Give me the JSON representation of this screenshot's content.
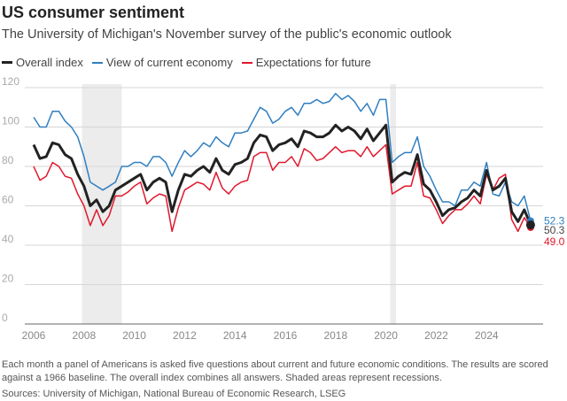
{
  "chart_data": {
    "type": "line",
    "title": "US consumer sentiment",
    "subtitle": "The University of Michigan's November survey of the public's economic outlook",
    "xlim": [
      2006,
      2026
    ],
    "ylim": [
      0,
      120
    ],
    "x_ticks": [
      "2006",
      "2008",
      "2010",
      "2012",
      "2014",
      "2016",
      "2018",
      "2020",
      "2022",
      "2024"
    ],
    "y_ticks": [
      "0",
      "20",
      "40",
      "60",
      "80",
      "100",
      "120"
    ],
    "grid": true,
    "legend_placement": "top-left",
    "recessions": [
      [
        2007.92,
        2009.5
      ],
      [
        2020.17,
        2020.4
      ]
    ],
    "x_start": 2006,
    "x_step_years": 0.25,
    "series": [
      {
        "name": "Overall index",
        "color": "#222222",
        "end_label": "50.3",
        "values": [
          91,
          84,
          85,
          92,
          91,
          86,
          84,
          76,
          70,
          60,
          63,
          57,
          60,
          68,
          70,
          72,
          74,
          76,
          68,
          72,
          74,
          72,
          57,
          68,
          76,
          75,
          78,
          80,
          77,
          84,
          78,
          76,
          81,
          82,
          84,
          92,
          96,
          95,
          88,
          91,
          92,
          94,
          90,
          98,
          97,
          95,
          95,
          97,
          101,
          98,
          100,
          98,
          94,
          99,
          93,
          97,
          101,
          72,
          75,
          77,
          76,
          86,
          71,
          68,
          62,
          55,
          58,
          59,
          62,
          64,
          68,
          65,
          78,
          68,
          70,
          74,
          57,
          52,
          58,
          50.3
        ]
      },
      {
        "name": "View of current economy",
        "color": "#2f7fc1",
        "end_label": "52.3",
        "values": [
          105,
          100,
          100,
          108,
          108,
          103,
          100,
          95,
          85,
          72,
          70,
          68,
          70,
          72,
          80,
          80,
          82,
          82,
          80,
          85,
          85,
          82,
          75,
          82,
          88,
          85,
          88,
          92,
          90,
          95,
          92,
          90,
          97,
          97,
          98,
          104,
          110,
          108,
          102,
          104,
          108,
          110,
          106,
          112,
          112,
          114,
          112,
          113,
          117,
          114,
          116,
          113,
          108,
          112,
          106,
          114,
          114,
          82,
          85,
          87,
          87,
          95,
          80,
          75,
          68,
          62,
          62,
          60,
          68,
          68,
          72,
          70,
          82,
          66,
          65,
          72,
          62,
          60,
          65,
          52.3
        ]
      },
      {
        "name": "Expectations for future",
        "color": "#e0182d",
        "end_label": "49.0",
        "values": [
          80,
          73,
          75,
          82,
          80,
          75,
          74,
          66,
          60,
          50,
          58,
          50,
          55,
          65,
          65,
          67,
          70,
          72,
          61,
          64,
          66,
          65,
          47,
          59,
          68,
          70,
          72,
          71,
          68,
          77,
          69,
          66,
          70,
          72,
          73,
          85,
          87,
          87,
          78,
          82,
          82,
          85,
          80,
          89,
          87,
          83,
          84,
          87,
          90,
          87,
          88,
          88,
          85,
          90,
          85,
          88,
          91,
          66,
          68,
          70,
          70,
          82,
          65,
          64,
          58,
          51,
          55,
          58,
          58,
          61,
          65,
          61,
          76,
          68,
          74,
          76,
          53,
          47,
          54,
          49.0
        ]
      }
    ]
  },
  "footer": {
    "note": "Each month a panel of Americans is asked five questions about current and future economic conditions. The results are scored against a 1966 baseline. The overall index combines all answers. Shaded areas represent recessions.",
    "source": "Sources: University of Michigan, National Bureau of Economic Research, LSEG"
  }
}
